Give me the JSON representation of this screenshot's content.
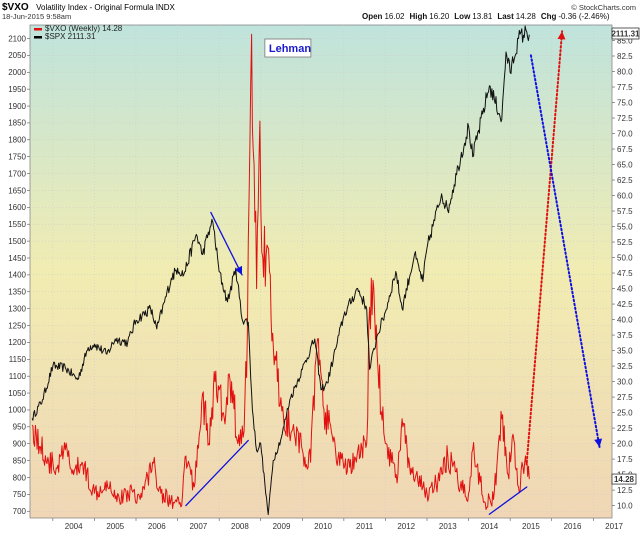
{
  "header": {
    "symbol": "$VXO",
    "name": "Volatility Index - Original Formula INDX",
    "date": "18-Jun-2015 9:58am",
    "brand": "© StockCharts.com",
    "quote": [
      {
        "label": "Open",
        "value": "16.02"
      },
      {
        "label": "High",
        "value": "16.20"
      },
      {
        "label": "Low",
        "value": "13.81"
      },
      {
        "label": "Last",
        "value": "14.28"
      },
      {
        "label": "Chg",
        "value": "-0.36 (-2.46%)"
      }
    ]
  },
  "legend": [
    {
      "label": "$VXO (Weekly) 14.28",
      "color": "#e01010"
    },
    {
      "label": "$SPX 2111.31",
      "color": "#000000"
    }
  ],
  "annotation": {
    "text": "Lehman",
    "color": "#1a1acc"
  },
  "last_labels": {
    "spx": "2111.31",
    "vxo": "14.28"
  },
  "colors": {
    "vxo": "#e01010",
    "spx": "#111111",
    "trend": "#1010e0",
    "projection_up": "#e01010",
    "projection_down": "#1010e0",
    "bg_top": "#bfe3dc",
    "bg_mid": "#f1ecb2",
    "bg_bottom": "#f0d6b5"
  },
  "chart_data": {
    "type": "line",
    "x_ticks": [
      "2004",
      "2005",
      "2006",
      "2007",
      "2008",
      "2009",
      "2010",
      "2011",
      "2012",
      "2013",
      "2014",
      "2015",
      "2016",
      "2017"
    ],
    "left_axis": {
      "ticks": [
        700,
        750,
        800,
        850,
        900,
        950,
        1000,
        1050,
        1100,
        1150,
        1200,
        1250,
        1300,
        1350,
        1400,
        1450,
        1500,
        1550,
        1600,
        1650,
        1700,
        1750,
        1800,
        1850,
        1900,
        1950,
        2000,
        2050,
        2100
      ],
      "range": [
        680,
        2140
      ]
    },
    "right_axis": {
      "ticks": [
        10.0,
        12.5,
        15.0,
        17.5,
        20.0,
        22.5,
        25.0,
        27.5,
        30.0,
        32.5,
        35.0,
        37.5,
        40.0,
        42.5,
        45.0,
        47.5,
        50.0,
        52.5,
        55.0,
        57.5,
        60.0,
        62.5,
        65.0,
        67.5,
        70.0,
        72.5,
        75.0,
        77.5,
        80.0,
        82.5,
        85.0
      ],
      "range": [
        8.0,
        87.5
      ]
    },
    "x_range": [
      2003.45,
      2017.45
    ],
    "series": [
      {
        "name": "$SPX",
        "axis": "left",
        "points": [
          [
            2003.5,
            975
          ],
          [
            2003.75,
            1030
          ],
          [
            2004.0,
            1130
          ],
          [
            2004.3,
            1125
          ],
          [
            2004.6,
            1090
          ],
          [
            2004.85,
            1185
          ],
          [
            2005.0,
            1195
          ],
          [
            2005.3,
            1165
          ],
          [
            2005.5,
            1210
          ],
          [
            2005.8,
            1200
          ],
          [
            2006.0,
            1265
          ],
          [
            2006.35,
            1300
          ],
          [
            2006.5,
            1240
          ],
          [
            2006.85,
            1390
          ],
          [
            2007.0,
            1420
          ],
          [
            2007.15,
            1400
          ],
          [
            2007.45,
            1520
          ],
          [
            2007.6,
            1460
          ],
          [
            2007.78,
            1540
          ],
          [
            2007.85,
            1555
          ],
          [
            2008.0,
            1410
          ],
          [
            2008.2,
            1320
          ],
          [
            2008.4,
            1420
          ],
          [
            2008.55,
            1270
          ],
          [
            2008.7,
            1260
          ],
          [
            2008.8,
            1000
          ],
          [
            2008.9,
            880
          ],
          [
            2009.0,
            900
          ],
          [
            2009.1,
            780
          ],
          [
            2009.18,
            690
          ],
          [
            2009.3,
            850
          ],
          [
            2009.5,
            920
          ],
          [
            2009.7,
            1030
          ],
          [
            2010.0,
            1120
          ],
          [
            2010.3,
            1210
          ],
          [
            2010.45,
            1060
          ],
          [
            2010.6,
            1080
          ],
          [
            2010.8,
            1180
          ],
          [
            2011.0,
            1280
          ],
          [
            2011.33,
            1360
          ],
          [
            2011.55,
            1300
          ],
          [
            2011.62,
            1120
          ],
          [
            2011.8,
            1220
          ],
          [
            2012.0,
            1290
          ],
          [
            2012.25,
            1410
          ],
          [
            2012.4,
            1300
          ],
          [
            2012.7,
            1460
          ],
          [
            2012.9,
            1380
          ],
          [
            2013.0,
            1480
          ],
          [
            2013.35,
            1640
          ],
          [
            2013.5,
            1590
          ],
          [
            2013.75,
            1720
          ],
          [
            2014.0,
            1840
          ],
          [
            2014.1,
            1750
          ],
          [
            2014.5,
            1960
          ],
          [
            2014.8,
            1860
          ],
          [
            2014.9,
            2060
          ],
          [
            2015.0,
            2000
          ],
          [
            2015.2,
            2100
          ],
          [
            2015.4,
            2120
          ],
          [
            2015.46,
            2111.31
          ]
        ]
      },
      {
        "name": "$VXO",
        "axis": "right",
        "points": [
          [
            2003.5,
            23
          ],
          [
            2003.7,
            19.5
          ],
          [
            2003.9,
            17
          ],
          [
            2004.1,
            16
          ],
          [
            2004.3,
            19
          ],
          [
            2004.5,
            15
          ],
          [
            2004.7,
            17
          ],
          [
            2005.0,
            12
          ],
          [
            2005.3,
            14
          ],
          [
            2005.6,
            11
          ],
          [
            2005.9,
            12.5
          ],
          [
            2006.1,
            11
          ],
          [
            2006.4,
            17
          ],
          [
            2006.6,
            12
          ],
          [
            2006.9,
            10.5
          ],
          [
            2007.1,
            10
          ],
          [
            2007.2,
            18
          ],
          [
            2007.4,
            13
          ],
          [
            2007.6,
            28
          ],
          [
            2007.75,
            20
          ],
          [
            2007.9,
            30
          ],
          [
            2008.1,
            25
          ],
          [
            2008.3,
            30
          ],
          [
            2008.45,
            20
          ],
          [
            2008.6,
            22
          ],
          [
            2008.68,
            38
          ],
          [
            2008.72,
            60
          ],
          [
            2008.78,
            86
          ],
          [
            2008.84,
            65
          ],
          [
            2008.9,
            45
          ],
          [
            2008.98,
            72
          ],
          [
            2009.05,
            50
          ],
          [
            2009.15,
            52
          ],
          [
            2009.25,
            40
          ],
          [
            2009.4,
            30
          ],
          [
            2009.55,
            24
          ],
          [
            2009.75,
            22
          ],
          [
            2010.0,
            19
          ],
          [
            2010.2,
            17
          ],
          [
            2010.35,
            36
          ],
          [
            2010.5,
            26
          ],
          [
            2010.8,
            19
          ],
          [
            2011.0,
            16
          ],
          [
            2011.3,
            17
          ],
          [
            2011.55,
            20
          ],
          [
            2011.62,
            42
          ],
          [
            2011.72,
            45
          ],
          [
            2011.82,
            32
          ],
          [
            2012.0,
            20
          ],
          [
            2012.3,
            15
          ],
          [
            2012.4,
            24
          ],
          [
            2012.6,
            15
          ],
          [
            2012.9,
            13
          ],
          [
            2013.0,
            12
          ],
          [
            2013.3,
            14
          ],
          [
            2013.5,
            18
          ],
          [
            2013.8,
            13
          ],
          [
            2014.0,
            12
          ],
          [
            2014.1,
            19
          ],
          [
            2014.4,
            10.5
          ],
          [
            2014.6,
            11
          ],
          [
            2014.8,
            24
          ],
          [
            2014.95,
            15
          ],
          [
            2015.05,
            21
          ],
          [
            2015.2,
            13
          ],
          [
            2015.35,
            17
          ],
          [
            2015.46,
            14.28
          ]
        ]
      }
    ],
    "drawn_lines": [
      {
        "role": "spx-arrow",
        "axis": "left",
        "from": [
          2007.8,
          1585
        ],
        "to": [
          2008.55,
          1400
        ],
        "style": "solid-arrow"
      },
      {
        "role": "vxo-trend-2007-2008",
        "axis": "right",
        "from": [
          2007.2,
          10
        ],
        "to": [
          2008.7,
          20.5
        ],
        "style": "solid"
      },
      {
        "role": "vxo-trend-2014-2015",
        "axis": "right",
        "from": [
          2014.5,
          8.6
        ],
        "to": [
          2015.4,
          13
        ],
        "style": "solid"
      },
      {
        "role": "vxo-projection-up",
        "axis": "right",
        "from": [
          2015.4,
          17
        ],
        "to": [
          2016.25,
          86.5
        ],
        "style": "dotted-arrow"
      },
      {
        "role": "spx-projection-down",
        "axis": "left",
        "from": [
          2015.5,
          2050
        ],
        "to": [
          2017.15,
          890
        ],
        "style": "dotted-arrow"
      }
    ],
    "annotation_anchor": {
      "text": "Lehman",
      "x": 2009.1,
      "y_left": 2060
    }
  }
}
